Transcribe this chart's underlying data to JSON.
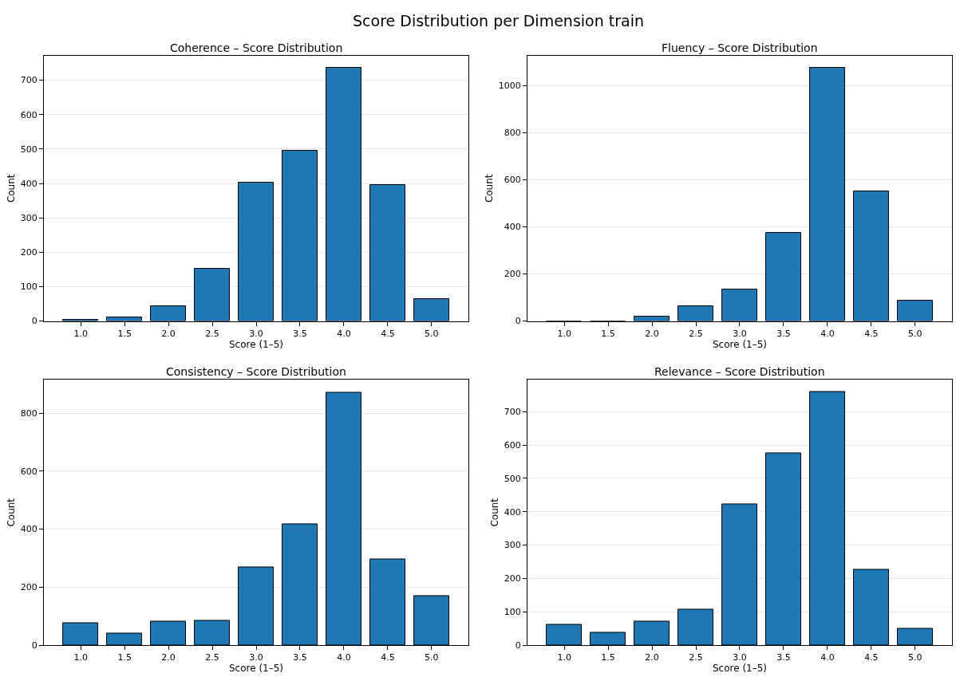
{
  "chart_data": [
    {
      "type": "bar",
      "title": "Coherence – Score Distribution",
      "xlabel": "Score (1–5)",
      "ylabel": "Count",
      "annotations": [
        "Score Distribution per Dimension train"
      ],
      "x": [
        1.0,
        1.5,
        2.0,
        2.5,
        3.0,
        3.5,
        4.0,
        4.5,
        5.0
      ],
      "values": [
        3,
        10,
        44,
        152,
        402,
        494,
        736,
        396,
        65
      ],
      "color": "#1f77b4",
      "xlim": [
        0.58,
        5.42
      ],
      "xticks": [
        {
          "value": 1.0,
          "label": "1.0"
        },
        {
          "value": 1.5,
          "label": "1.5"
        },
        {
          "value": 2.0,
          "label": "2.0"
        },
        {
          "value": 2.5,
          "label": "2.5"
        },
        {
          "value": 3.0,
          "label": "3.0"
        },
        {
          "value": 3.5,
          "label": "3.5"
        },
        {
          "value": 4.0,
          "label": "4.0"
        },
        {
          "value": 4.5,
          "label": "4.5"
        },
        {
          "value": 5.0,
          "label": "5.0"
        }
      ],
      "ylim": [
        0,
        771
      ],
      "yticks": [
        0,
        100,
        200,
        300,
        400,
        500,
        600,
        700
      ],
      "grid": "y"
    },
    {
      "type": "bar",
      "title": "Fluency – Score Distribution",
      "xlabel": "Score (1–5)",
      "ylabel": "Count",
      "x": [
        1.0,
        1.5,
        2.0,
        2.5,
        3.0,
        3.5,
        4.0,
        4.5,
        5.0
      ],
      "values": [
        0,
        0,
        20,
        63,
        134,
        373,
        1074,
        551,
        88
      ],
      "color": "#1f77b4",
      "xlim": [
        0.58,
        5.42
      ],
      "xticks": [
        {
          "value": 1.0,
          "label": "1.0"
        },
        {
          "value": 1.5,
          "label": "1.5"
        },
        {
          "value": 2.0,
          "label": "2.0"
        },
        {
          "value": 2.5,
          "label": "2.5"
        },
        {
          "value": 3.0,
          "label": "3.0"
        },
        {
          "value": 3.5,
          "label": "3.5"
        },
        {
          "value": 4.0,
          "label": "4.0"
        },
        {
          "value": 4.5,
          "label": "4.5"
        },
        {
          "value": 5.0,
          "label": "5.0"
        }
      ],
      "ylim": [
        0,
        1126
      ],
      "yticks": [
        0,
        200,
        400,
        600,
        800,
        1000
      ],
      "grid": "y"
    },
    {
      "type": "bar",
      "title": "Consistency – Score Distribution",
      "xlabel": "Score (1–5)",
      "ylabel": "Count",
      "x": [
        1.0,
        1.5,
        2.0,
        2.5,
        3.0,
        3.5,
        4.0,
        4.5,
        5.0
      ],
      "values": [
        77,
        41,
        80,
        85,
        269,
        418,
        872,
        296,
        169
      ],
      "color": "#1f77b4",
      "xlim": [
        0.58,
        5.42
      ],
      "xticks": [
        {
          "value": 1.0,
          "label": "1.0"
        },
        {
          "value": 1.5,
          "label": "1.5"
        },
        {
          "value": 2.0,
          "label": "2.0"
        },
        {
          "value": 2.5,
          "label": "2.5"
        },
        {
          "value": 3.0,
          "label": "3.0"
        },
        {
          "value": 3.5,
          "label": "3.5"
        },
        {
          "value": 4.0,
          "label": "4.0"
        },
        {
          "value": 4.5,
          "label": "4.5"
        },
        {
          "value": 5.0,
          "label": "5.0"
        }
      ],
      "ylim": [
        0,
        915
      ],
      "yticks": [
        0,
        200,
        400,
        600,
        800
      ],
      "grid": "y"
    },
    {
      "type": "bar",
      "title": "Relevance – Score Distribution",
      "xlabel": "Score (1–5)",
      "ylabel": "Count",
      "x": [
        1.0,
        1.5,
        2.0,
        2.5,
        3.0,
        3.5,
        4.0,
        4.5,
        5.0
      ],
      "values": [
        62,
        38,
        70,
        106,
        423,
        576,
        758,
        227,
        50
      ],
      "color": "#1f77b4",
      "xlim": [
        0.58,
        5.42
      ],
      "xticks": [
        {
          "value": 1.0,
          "label": "1.0"
        },
        {
          "value": 1.5,
          "label": "1.5"
        },
        {
          "value": 2.0,
          "label": "2.0"
        },
        {
          "value": 2.5,
          "label": "2.5"
        },
        {
          "value": 3.0,
          "label": "3.0"
        },
        {
          "value": 3.5,
          "label": "3.5"
        },
        {
          "value": 4.0,
          "label": "4.0"
        },
        {
          "value": 4.5,
          "label": "4.5"
        },
        {
          "value": 5.0,
          "label": "5.0"
        }
      ],
      "ylim": [
        0,
        795
      ],
      "yticks": [
        0,
        100,
        200,
        300,
        400,
        500,
        600,
        700
      ],
      "grid": "y"
    }
  ]
}
